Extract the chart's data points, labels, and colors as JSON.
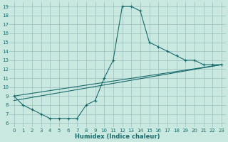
{
  "xlabel": "Humidex (Indice chaleur)",
  "bg_color": "#c8e8e0",
  "grid_color": "#9bbfbf",
  "line_color": "#1a6b6b",
  "xlim": [
    -0.5,
    23.5
  ],
  "ylim": [
    5.5,
    19.5
  ],
  "xticks": [
    0,
    1,
    2,
    3,
    4,
    5,
    6,
    7,
    8,
    9,
    10,
    11,
    12,
    13,
    14,
    15,
    16,
    17,
    18,
    19,
    20,
    21,
    22,
    23
  ],
  "yticks": [
    6,
    7,
    8,
    9,
    10,
    11,
    12,
    13,
    14,
    15,
    16,
    17,
    18,
    19
  ],
  "series": [
    {
      "x": [
        0,
        1,
        2,
        3,
        4,
        5,
        6,
        7,
        8,
        9,
        10,
        11,
        12,
        13,
        14,
        15,
        16,
        17,
        18,
        19,
        20,
        21,
        22,
        23
      ],
      "y": [
        9,
        8,
        7.5,
        7,
        6.5,
        6.5,
        6.5,
        6.5,
        8.0,
        8.5,
        11.0,
        13.0,
        19.0,
        19.0,
        18.5,
        15.0,
        14.5,
        14.0,
        13.5,
        13.0,
        13.0,
        12.5,
        12.5,
        12.5
      ]
    },
    {
      "x": [
        0,
        23
      ],
      "y": [
        9.0,
        12.5
      ]
    },
    {
      "x": [
        0,
        23
      ],
      "y": [
        8.5,
        12.5
      ]
    }
  ]
}
